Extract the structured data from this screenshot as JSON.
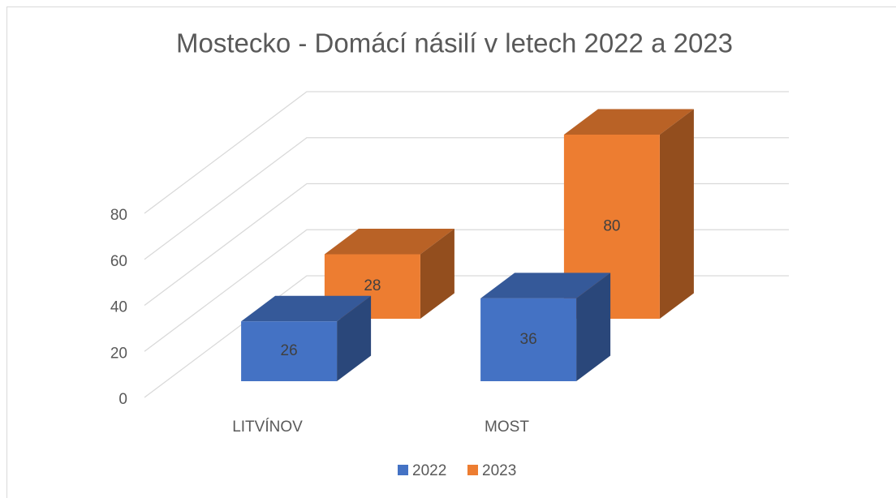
{
  "chart_data": {
    "type": "bar3d",
    "title": "Mostecko - Domácí násilí v letech 2022 a 2023",
    "categories": [
      "LITVÍNOV",
      "MOST"
    ],
    "series": [
      {
        "name": "2022",
        "color": "#4472c4",
        "values": [
          26,
          36
        ]
      },
      {
        "name": "2023",
        "color": "#ed7d31",
        "values": [
          28,
          80
        ]
      }
    ],
    "ylim": [
      0,
      80
    ],
    "yticks": [
      0,
      20,
      40,
      60,
      80
    ],
    "grid": true,
    "legend": "bottom"
  }
}
